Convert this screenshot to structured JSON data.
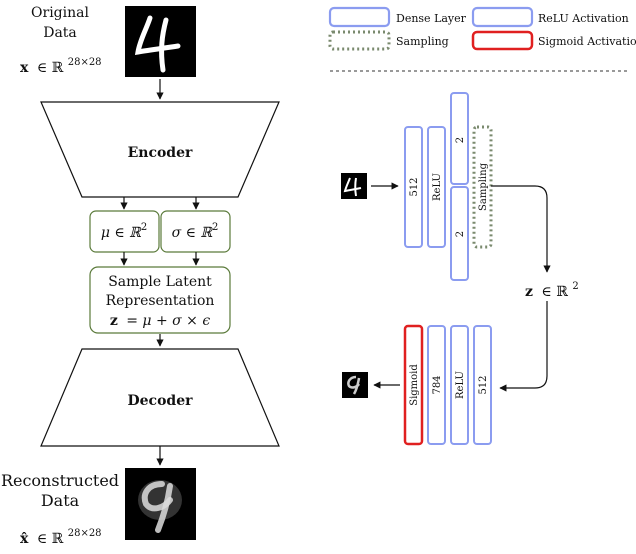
{
  "left": {
    "original_label_line1": "Original",
    "original_label_line2": "Data",
    "x_bold": "x",
    "x_in": "∈ ℝ",
    "x_sup": "28×28",
    "encoder_label": "Encoder",
    "mu_label": "μ ∈ ℝ",
    "mu_sup": "2",
    "sigma_label": "σ ∈ ℝ",
    "sigma_sup": "2",
    "sample_line1": "Sample Latent",
    "sample_line2": "Representation",
    "sample_eq_bold": "z",
    "sample_eq_rest": "= μ + σ × ϵ",
    "decoder_label": "Decoder",
    "recon_label_line1": "Reconstructed",
    "recon_label_line2": "Data",
    "xhat_bold": "x̂",
    "xhat_in": "∈ ℝ",
    "xhat_sup": "28×28"
  },
  "legend": {
    "dense": "Dense Layer",
    "relu": "ReLU Activation",
    "sampling": "Sampling",
    "sigmoid": "Sigmoid Activation"
  },
  "encoder_net": {
    "dense1": "512",
    "relu": "ReLU",
    "dense_mu": "2",
    "dense_sigma": "2",
    "sampling": "Sampling"
  },
  "latent": {
    "z_bold": "z",
    "z_in": "∈ ℝ",
    "z_sup": "2"
  },
  "decoder_net": {
    "dense1": "512",
    "relu": "ReLU",
    "dense_out": "784",
    "sigmoid": "Sigmoid"
  },
  "colors": {
    "dense": "#8b9cf0",
    "relu": "#8b9cf0",
    "sampling": "#7a8a6e",
    "sigmoid": "#e02020"
  }
}
